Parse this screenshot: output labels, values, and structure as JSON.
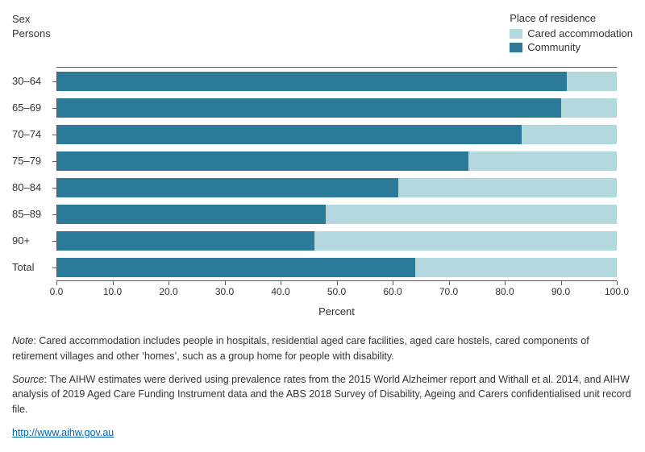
{
  "header": {
    "sex_label": "Sex",
    "sex_value": "Persons",
    "legend_title": "Place of residence",
    "legend_items": [
      {
        "label": "Cared accommodation",
        "color": "#b3d9de"
      },
      {
        "label": "Community",
        "color": "#2c7a99"
      }
    ]
  },
  "chart": {
    "type": "stacked-horizontal-bar",
    "colors": {
      "community": "#2c7a99",
      "cared": "#b3d9de"
    },
    "x_axis": {
      "title": "Percent",
      "min": 0,
      "max": 100,
      "tick_step": 10,
      "tick_labels": [
        "0.0",
        "10.0",
        "20.0",
        "30.0",
        "40.0",
        "50.0",
        "60.0",
        "70.0",
        "80.0",
        "90.0",
        "100.0"
      ]
    },
    "categories": [
      {
        "label": "30–64",
        "community": 91,
        "cared": 9
      },
      {
        "label": "65–69",
        "community": 90,
        "cared": 10
      },
      {
        "label": "70–74",
        "community": 83,
        "cared": 17
      },
      {
        "label": "75–79",
        "community": 73.5,
        "cared": 26.5
      },
      {
        "label": "80–84",
        "community": 61,
        "cared": 39
      },
      {
        "label": "85–89",
        "community": 48,
        "cared": 52
      },
      {
        "label": "90+",
        "community": 46,
        "cared": 54
      },
      {
        "label": "Total",
        "community": 64,
        "cared": 36
      }
    ]
  },
  "footnotes": {
    "note_prefix": "Note",
    "note_text": ": Cared accommodation includes people in hospitals, residential aged care facilities, aged care hostels, cared components of retirement villages and other ‘homes’, such as a group home for people with disability.",
    "source_prefix": "Source",
    "source_text": ": The AIHW estimates were derived using prevalence rates from the 2015 World Alzheimer report and Withall et al. 2014,  and AIHW analysis of 2019 Aged Care Funding Instrument data and the ABS 2018 Survey of Disability, Ageing and Carers confidentialised unit record file.",
    "link_text": "http://www.aihw.gov.au"
  }
}
